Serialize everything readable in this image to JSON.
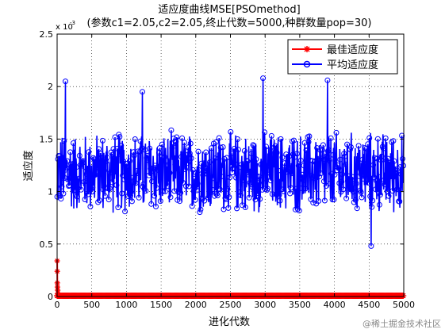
{
  "chart_data": {
    "type": "line",
    "title": "适应度曲线MSE[PSOmethod]",
    "subtitle": "(参数c1=2.05,c2=2.05,终止代数=5000,种群数量pop=30)",
    "xlabel": "进化代数",
    "ylabel": "适应度",
    "y_exponent_label": "x 10",
    "y_exponent": "-3",
    "xlim": [
      0,
      5000
    ],
    "ylim": [
      0,
      0.0025
    ],
    "xticks": [
      0,
      500,
      1000,
      1500,
      2000,
      2500,
      3000,
      3500,
      4000,
      4500,
      5000
    ],
    "xtick_labels": [
      "0",
      "500",
      "1000",
      "1500",
      "2000",
      "2500",
      "3000",
      "3500",
      "4000",
      "4500",
      "5000"
    ],
    "yticks": [
      0,
      0.0005,
      0.001,
      0.0015,
      0.002,
      0.0025
    ],
    "ytick_labels": [
      "0",
      "0.5",
      "1",
      "1.5",
      "2",
      "2.5"
    ],
    "grid": true,
    "legend": {
      "position": "top-right",
      "entries": [
        "最佳适应度",
        "平均适应度"
      ]
    },
    "series": [
      {
        "name": "最佳适应度",
        "color": "#ff0000",
        "marker": "star",
        "x": [
          1,
          2,
          3,
          5,
          8,
          12,
          20,
          40,
          80,
          160,
          300,
          600,
          1000,
          2000,
          3000,
          4000,
          5000
        ],
        "y": [
          0.00034,
          0.00024,
          0.00013,
          9e-05,
          6e-05,
          3e-05,
          1e-05,
          0.0,
          0.0,
          0.0,
          0.0,
          0.0,
          0.0,
          0.0,
          0.0,
          0.0,
          0.0
        ]
      },
      {
        "name": "平均适应度",
        "color": "#0000ff",
        "marker": "circle",
        "x_start": 1,
        "x_end": 5000,
        "mean": 0.00118,
        "spread": 0.00042,
        "peaks": [
          {
            "x": 120,
            "y": 0.00205
          },
          {
            "x": 1230,
            "y": 0.00195
          },
          {
            "x": 2970,
            "y": 0.00208
          },
          {
            "x": 3900,
            "y": 0.00206
          },
          {
            "x": 4530,
            "y": 0.00048
          }
        ]
      }
    ]
  },
  "watermark": "@稀土掘金技术社区"
}
